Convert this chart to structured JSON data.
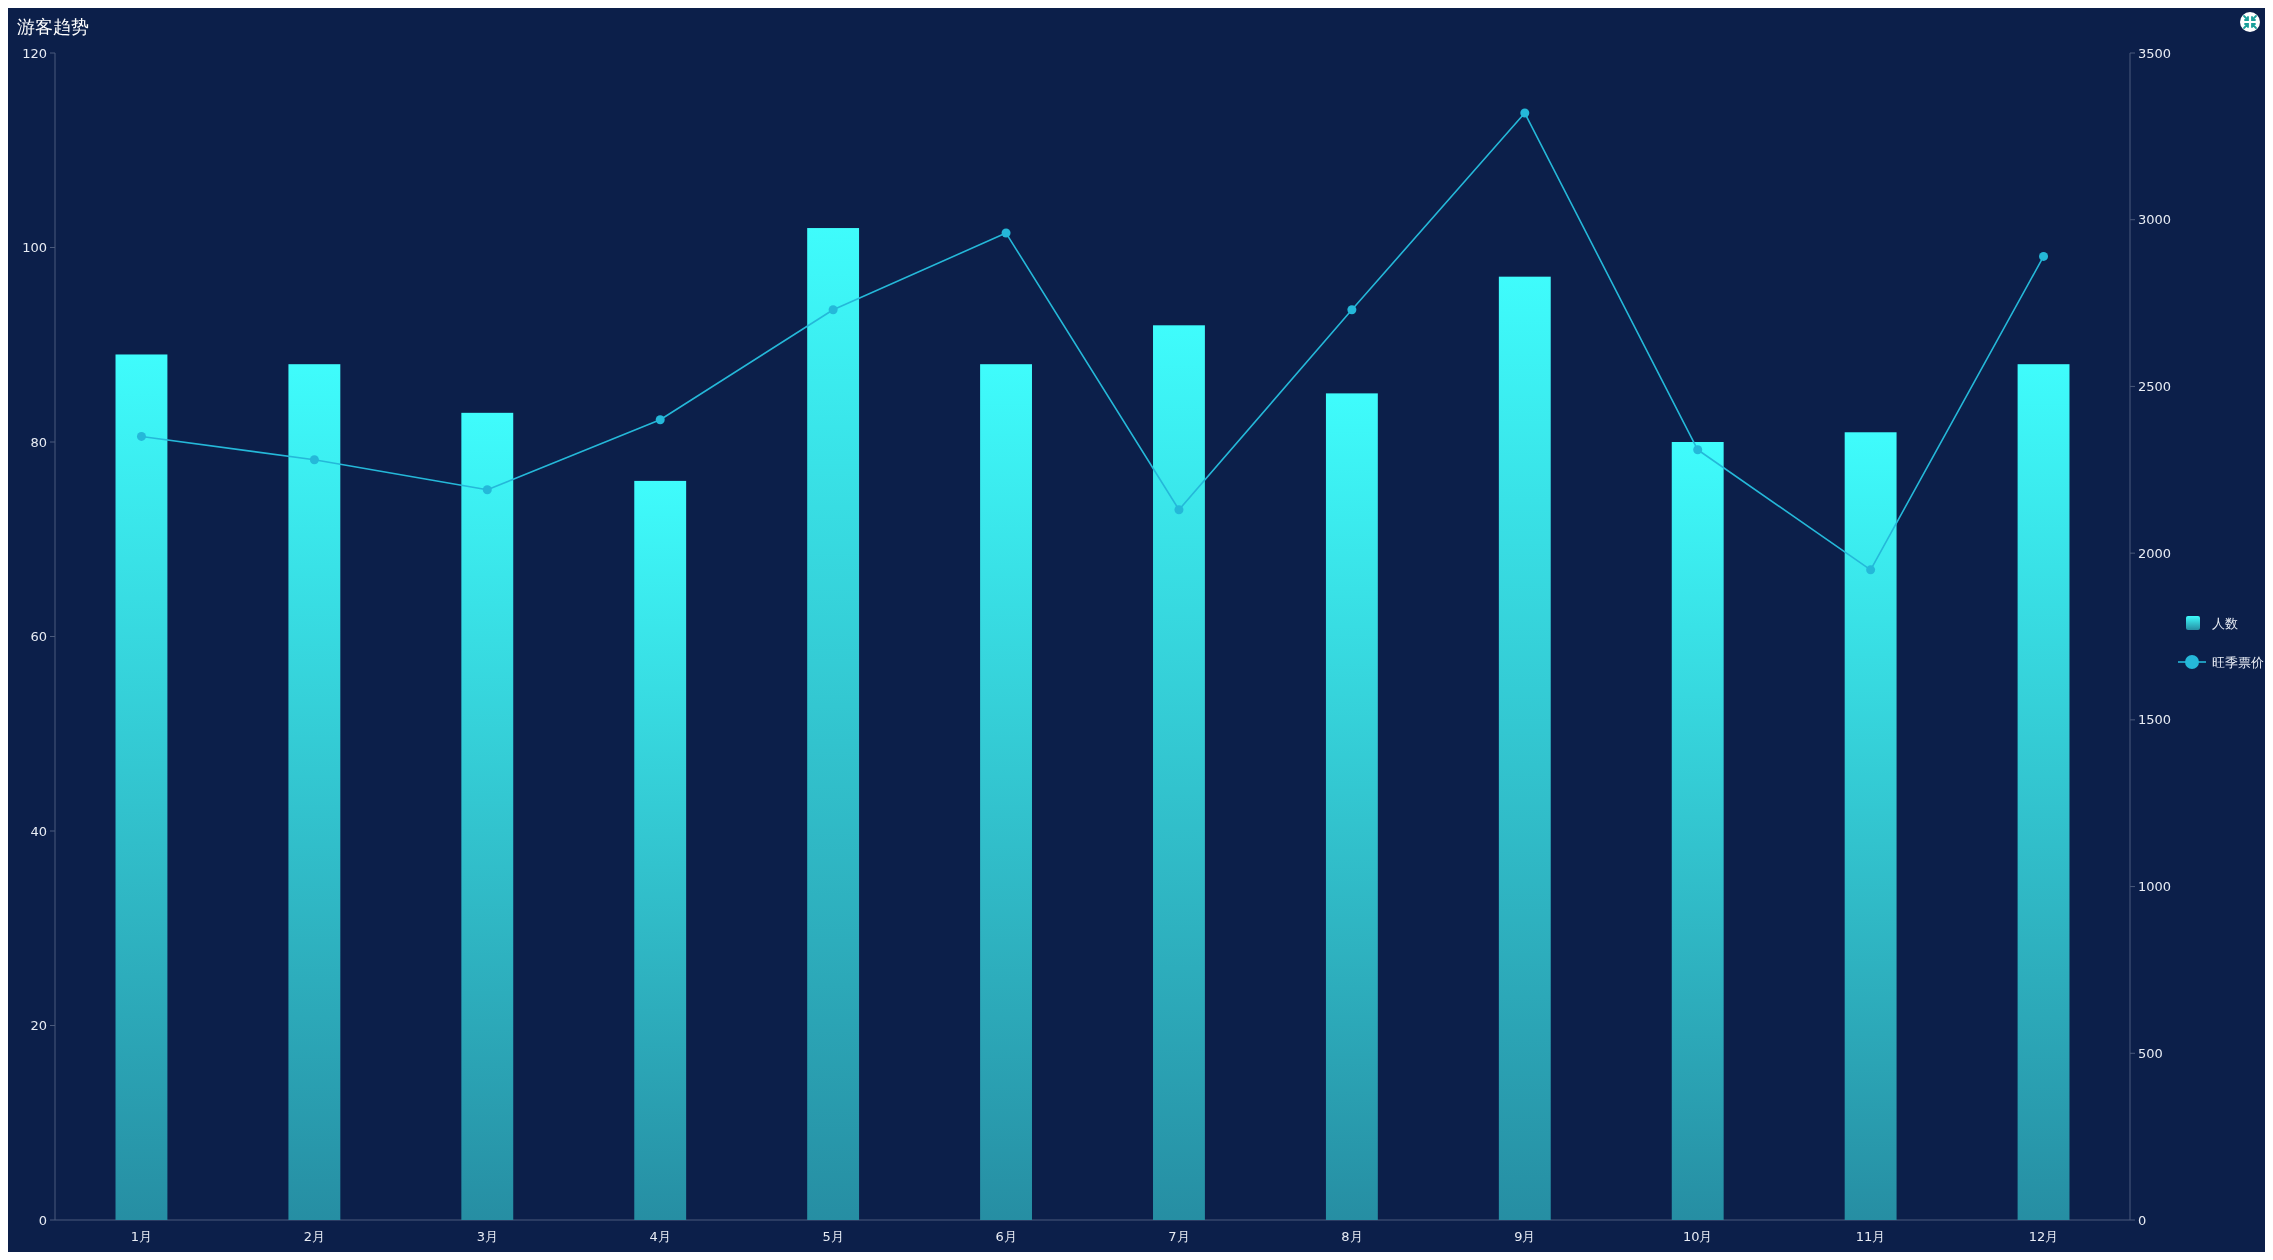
{
  "chart_data": {
    "type": "bar",
    "title": "游客趋势",
    "categories": [
      "1月",
      "2月",
      "3月",
      "4月",
      "5月",
      "6月",
      "7月",
      "8月",
      "9月",
      "10月",
      "11月",
      "12月"
    ],
    "series": [
      {
        "name": "人数",
        "color": "#3ffcfc",
        "values": [
          89,
          88,
          83,
          76,
          102,
          88,
          92,
          85,
          97,
          80,
          81,
          88
        ]
      },
      {
        "name": "旺季票价",
        "type": "line",
        "axis": "y2",
        "color": "#25b8d9",
        "values": [
          2350,
          2280,
          2190,
          2400,
          2730,
          2960,
          2130,
          2730,
          3320,
          2310,
          1950,
          2890
        ]
      }
    ],
    "ylim": [
      0,
      120
    ],
    "yticks": [
      0,
      20,
      40,
      60,
      80,
      100,
      120
    ],
    "y2lim": [
      0,
      3500
    ],
    "y2ticks": [
      0,
      500,
      1000,
      1500,
      2000,
      2500,
      3000,
      3500
    ],
    "legend": "right",
    "marker": "circle"
  }
}
